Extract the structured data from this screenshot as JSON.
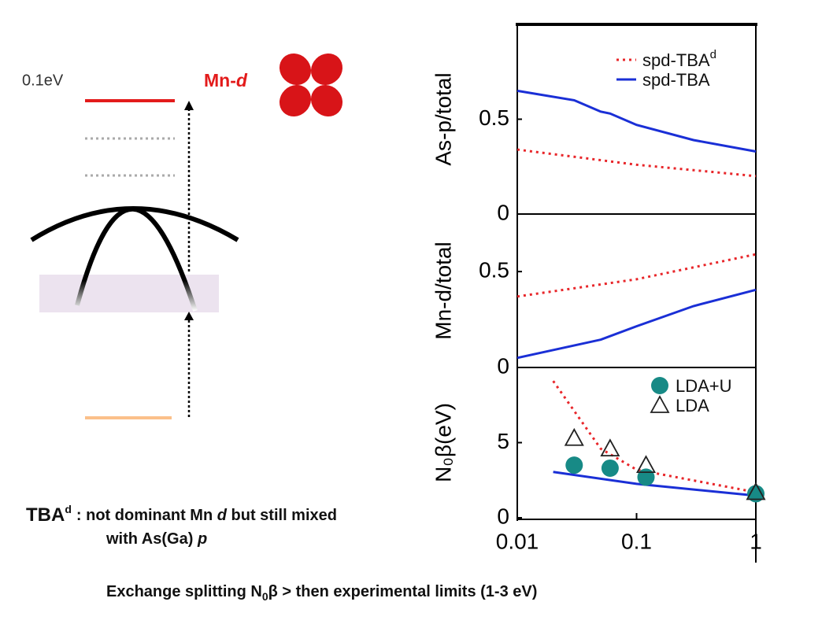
{
  "diagram": {
    "energy_label": "0.1eV",
    "orbital_label": "Mn-",
    "orbital_label_italic": "d"
  },
  "notes": {
    "line1": {
      "tba": "TBA",
      "sup": "d",
      "a": ": not dominant Mn ",
      "b": "d",
      "c": " but still mixed"
    },
    "line2": {
      "a": "with As(Ga) ",
      "b": "p"
    },
    "line3": {
      "a": "Exchange splitting N",
      "sub": "0",
      "b": "β > then experimental limits (1-3 eV)"
    }
  },
  "chart_data": [
    {
      "type": "line",
      "ylabel": "As-p/total",
      "xscale": "log",
      "xlim": [
        0.01,
        1
      ],
      "ylim": [
        0,
        1
      ],
      "yticks": [
        0,
        0.5
      ],
      "series": [
        {
          "name": "spd-TBA",
          "superscript": "d",
          "color": "#e8262a",
          "style": "dotted",
          "x": [
            0.01,
            0.1,
            1
          ],
          "values": [
            0.34,
            0.26,
            0.2
          ]
        },
        {
          "name": "spd-TBA",
          "color": "#1a2fd6",
          "style": "solid",
          "x": [
            0.01,
            0.03,
            0.05,
            0.06,
            0.1,
            0.3,
            1
          ],
          "values": [
            0.65,
            0.6,
            0.54,
            0.53,
            0.47,
            0.39,
            0.33
          ]
        }
      ]
    },
    {
      "type": "line",
      "ylabel": "Mn-d/total",
      "xscale": "log",
      "xlim": [
        0.01,
        1
      ],
      "ylim": [
        0,
        0.8
      ],
      "yticks": [
        0,
        0.5
      ],
      "series": [
        {
          "color": "#e8262a",
          "style": "dotted",
          "x": [
            0.01,
            0.1,
            1
          ],
          "values": [
            0.37,
            0.46,
            0.59
          ]
        },
        {
          "color": "#1a2fd6",
          "style": "solid",
          "x": [
            0.01,
            0.05,
            0.1,
            0.3,
            1
          ],
          "values": [
            0.05,
            0.145,
            0.215,
            0.32,
            0.405
          ]
        }
      ]
    },
    {
      "type": "line",
      "ylabel": "N₀β(eV)",
      "xscale": "log",
      "xlim": [
        0.01,
        1
      ],
      "ylim": [
        0,
        10
      ],
      "yticks": [
        0,
        5
      ],
      "xticks": [
        0.01,
        0.1,
        1
      ],
      "series": [
        {
          "color": "#e8262a",
          "style": "dotted",
          "x": [
            0.02,
            0.05,
            0.1,
            1
          ],
          "values": [
            9.1,
            4.6,
            3.2,
            1.7
          ]
        },
        {
          "color": "#1a2fd6",
          "style": "solid",
          "x": [
            0.02,
            0.1,
            1
          ],
          "values": [
            3.05,
            2.26,
            1.47
          ]
        },
        {
          "name": "LDA+U",
          "color": "#178a86",
          "style": "circle",
          "x": [
            0.03,
            0.06,
            0.12,
            1
          ],
          "values": [
            3.5,
            3.3,
            2.7,
            1.6
          ]
        },
        {
          "name": "LDA",
          "color": "#222222",
          "style": "triangle",
          "x": [
            0.03,
            0.06,
            0.12,
            1
          ],
          "values": [
            5.3,
            4.6,
            3.5,
            1.7
          ]
        }
      ]
    }
  ]
}
